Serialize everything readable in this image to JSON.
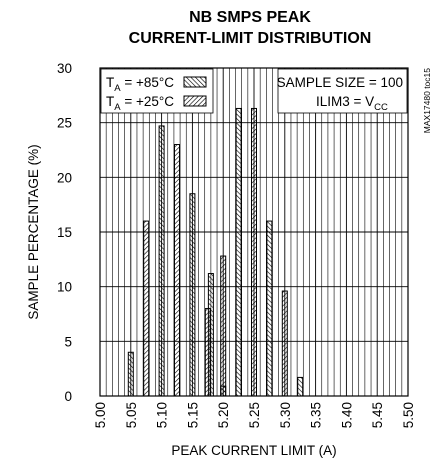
{
  "chart_data": {
    "type": "bar",
    "title": [
      "NB SMPS PEAK",
      "CURRENT-LIMIT DISTRIBUTION"
    ],
    "xlabel": "PEAK CURRENT LIMIT (A)",
    "ylabel": "SAMPLE PERCENTAGE (%)",
    "xlim": [
      5.0,
      5.5
    ],
    "ylim": [
      0,
      30
    ],
    "x_ticks": [
      "5.00",
      "5.05",
      "5.10",
      "5.15",
      "5.20",
      "5.25",
      "5.30",
      "5.35",
      "5.40",
      "5.45",
      "5.50"
    ],
    "y_ticks": [
      "0",
      "5",
      "10",
      "15",
      "20",
      "25",
      "30"
    ],
    "grid": true,
    "legend_position": "top-left",
    "series": [
      {
        "name": "+85°C",
        "legend_prefix": "T",
        "legend_sub": "A",
        "legend_value": " = +85°C",
        "hatch": "forward",
        "points": [
          {
            "x": 5.05,
            "y": 4
          },
          {
            "x": 5.1,
            "y": 24.7
          },
          {
            "x": 5.15,
            "y": 18.5
          },
          {
            "x": 5.18,
            "y": 11.2
          },
          {
            "x": 5.2,
            "y": 0.9
          },
          {
            "x": 5.225,
            "y": 26.3
          },
          {
            "x": 5.275,
            "y": 16
          },
          {
            "x": 5.325,
            "y": 1.7
          }
        ]
      },
      {
        "name": "+25°C",
        "legend_prefix": "T",
        "legend_sub": "A",
        "legend_value": " = +25°C",
        "hatch": "backward",
        "points": [
          {
            "x": 5.075,
            "y": 16
          },
          {
            "x": 5.125,
            "y": 23
          },
          {
            "x": 5.175,
            "y": 8
          },
          {
            "x": 5.2,
            "y": 12.8
          },
          {
            "x": 5.25,
            "y": 26.3
          },
          {
            "x": 5.3,
            "y": 9.6
          }
        ]
      }
    ],
    "annotations": {
      "sample_size": "SAMPLE SIZE = 100",
      "ilim_prefix": "ILIM3 = V",
      "ilim_sub": "CC",
      "figure_id": "MAX17480 toc15"
    }
  }
}
